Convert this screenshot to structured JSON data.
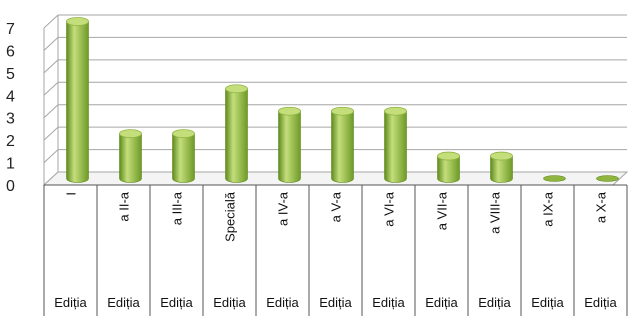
{
  "chart_data": {
    "type": "bar",
    "categories": [
      "I",
      "a II-a",
      "a III-a",
      "Specială",
      "a IV-a",
      "a V-a",
      "a VI-a",
      "a VII-a",
      "a VIII-a",
      "a IX-a",
      "a X-a"
    ],
    "category_group": [
      "Ediția",
      "Ediția",
      "Ediția",
      "Ediția",
      "Ediția",
      "Ediția",
      "Ediția",
      "Ediția",
      "Ediția",
      "Ediția",
      "Ediția"
    ],
    "values": [
      7,
      2,
      2,
      4,
      3,
      3,
      3,
      1,
      1,
      0,
      0
    ],
    "yticks": [
      "0",
      "1",
      "2",
      "3",
      "4",
      "5",
      "6",
      "7"
    ],
    "ylim": [
      0,
      7
    ],
    "grid": true,
    "bar_style": "3d-cylinder",
    "colors": {
      "bar_light": "#c4de7c",
      "bar_mid": "#8fb43f",
      "bar_dark": "#5f8a1d",
      "grid": "#a6a6a6"
    }
  }
}
